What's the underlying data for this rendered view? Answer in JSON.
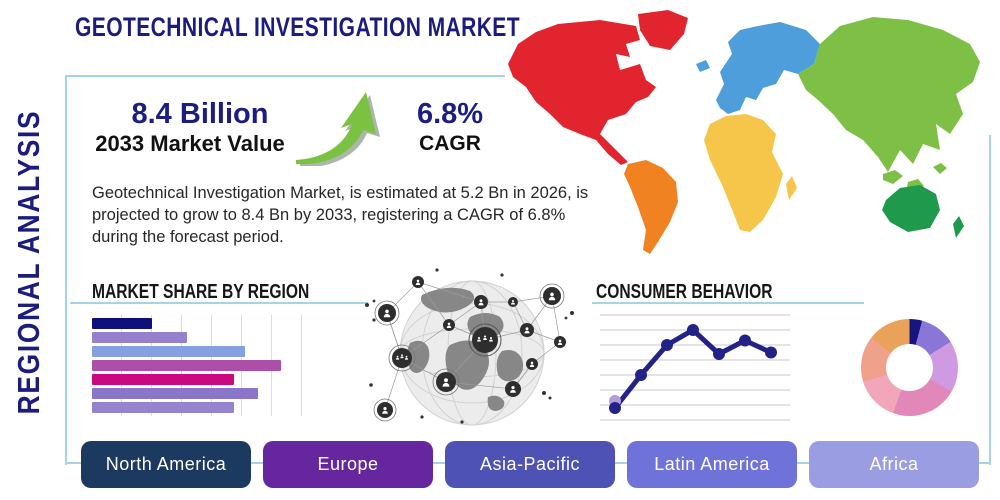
{
  "header": {
    "title": "GEOTECHNICAL INVESTIGATION MARKET"
  },
  "sidebar": {
    "label": "REGIONAL ANALYSIS"
  },
  "stats": {
    "value": "8.4 Billion",
    "value_label": "2033 Market Value",
    "cagr": "6.8%",
    "cagr_label": "CAGR",
    "arrow_icon_color": "#7cc242"
  },
  "description": {
    "text": "Geotechnical Investigation Market, is estimated at 5.2 Bn in 2026, is projected to grow to 8.4 Bn by 2033, registering a CAGR of 6.8% during the forecast period."
  },
  "colors": {
    "navy_text": "#1c1c7e",
    "frame_border": "#a6d3e9",
    "body_text": "#262626"
  },
  "map": {
    "name": "world-map-by-region",
    "colors": {
      "north_america": "#e2242e",
      "south_america": "#f08221",
      "europe": "#4d9edb",
      "africa": "#f6c64a",
      "asia": "#7ec045",
      "australia": "#1f9a4c"
    }
  },
  "chart_data": [
    {
      "type": "bar",
      "title": "MARKET SHARE BY REGION",
      "orientation": "horizontal",
      "categories": [
        "",
        "",
        "",
        "",
        "",
        "",
        ""
      ],
      "values": [
        32,
        50,
        81,
        100,
        75,
        88,
        75
      ],
      "value_note": "relative share, max bar = 100",
      "bar_colors": [
        "#10107a",
        "#9480cc",
        "#84a0e0",
        "#ad4fa8",
        "#c9097e",
        "#8a76c9",
        "#9583cf"
      ],
      "grid": "vertical-lines",
      "xlabel": "",
      "ylabel": ""
    },
    {
      "type": "line",
      "title": "CONSUMER BEHAVIOR",
      "x": [
        1,
        2,
        3,
        4,
        5,
        6,
        7
      ],
      "values": [
        0.8,
        3.0,
        5.0,
        6.0,
        4.4,
        5.3,
        4.5
      ],
      "ylim": [
        0,
        7
      ],
      "grid": "horizontal-lines",
      "line_color": "#232387",
      "start_dot_color": "#b39ddb",
      "xlabel": "",
      "ylabel": ""
    },
    {
      "type": "pie",
      "subtype": "donut",
      "title": "",
      "segments": [
        {
          "color": "#15157d",
          "value": 4.2
        },
        {
          "color": "#8a75d8",
          "value": 11.9
        },
        {
          "color": "#d09ae2",
          "value": 17.2
        },
        {
          "color": "#e288b8",
          "value": 22.2
        },
        {
          "color": "#f2a6ba",
          "value": 14.7
        },
        {
          "color": "#f0a18c",
          "value": 15.3
        },
        {
          "color": "#e8a259",
          "value": 14.5
        }
      ]
    }
  ],
  "region_buttons": [
    {
      "label": "North America",
      "color": "#1c3a60"
    },
    {
      "label": "Europe",
      "color": "#66279e"
    },
    {
      "label": "Asia-Pacific",
      "color": "#4f52b5"
    },
    {
      "label": "Latin America",
      "color": "#6f72d8"
    },
    {
      "label": "Africa",
      "color": "#9b9de2"
    }
  ]
}
